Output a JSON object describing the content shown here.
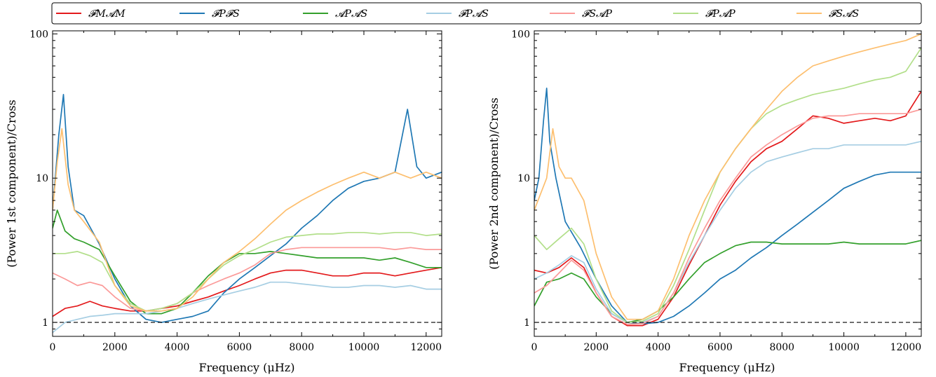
{
  "chart_data": [
    {
      "type": "line",
      "ylabel": "(Power 1st component)/Cross",
      "xlabel": "Frequency (μHz)",
      "xlim": [
        0,
        12500
      ],
      "ylim": [
        0.8,
        105
      ],
      "yscale": "log",
      "x_ticks": [
        0,
        2000,
        4000,
        6000,
        8000,
        10000,
        12000
      ],
      "x_tick_labels": [
        "0",
        "2000",
        "4000",
        "6000",
        "8000",
        "10000",
        "12000"
      ],
      "y_ticks": [
        1,
        10,
        100
      ],
      "y_tick_labels": [
        "1",
        "10",
        "100"
      ],
      "reference_line": 1,
      "series": [
        {
          "name": "𝓕M𝓐M",
          "color": "#e31a1c",
          "x": [
            0,
            400,
            800,
            1200,
            1600,
            2000,
            2500,
            3000,
            3500,
            4000,
            4500,
            5000,
            5500,
            6000,
            6500,
            7000,
            7500,
            8000,
            8500,
            9000,
            9500,
            10000,
            10500,
            11000,
            11500,
            12000,
            12500
          ],
          "y": [
            1.1,
            1.25,
            1.3,
            1.4,
            1.3,
            1.25,
            1.2,
            1.2,
            1.25,
            1.3,
            1.4,
            1.5,
            1.65,
            1.8,
            2.0,
            2.2,
            2.3,
            2.3,
            2.2,
            2.1,
            2.1,
            2.2,
            2.2,
            2.1,
            2.2,
            2.3,
            2.4
          ]
        },
        {
          "name": "𝓕P𝓕S",
          "color": "#1f78b4",
          "x": [
            0,
            200,
            350,
            500,
            700,
            1000,
            1500,
            2000,
            2500,
            3000,
            3500,
            4000,
            4500,
            5000,
            5500,
            6000,
            6500,
            7000,
            7500,
            8000,
            8500,
            9000,
            9500,
            10000,
            10500,
            11000,
            11400,
            11700,
            12000,
            12500
          ],
          "y": [
            6.0,
            20,
            38,
            12,
            6.0,
            5.5,
            3.5,
            2.0,
            1.3,
            1.05,
            1.0,
            1.05,
            1.1,
            1.2,
            1.6,
            2.0,
            2.4,
            2.9,
            3.5,
            4.5,
            5.5,
            7.0,
            8.5,
            9.5,
            10,
            11,
            30,
            12,
            10,
            11
          ]
        },
        {
          "name": "𝓐P𝓐S",
          "color": "#33a02c",
          "x": [
            0,
            150,
            400,
            700,
            1000,
            1500,
            2000,
            2500,
            3000,
            3500,
            4000,
            4500,
            5000,
            5500,
            6000,
            6500,
            7000,
            7500,
            8000,
            8500,
            9000,
            9500,
            10000,
            10500,
            11000,
            11500,
            12000,
            12500
          ],
          "y": [
            4.5,
            6.0,
            4.3,
            3.8,
            3.6,
            3.2,
            2.1,
            1.4,
            1.15,
            1.15,
            1.25,
            1.6,
            2.1,
            2.6,
            3.0,
            3.0,
            3.1,
            3.0,
            2.9,
            2.8,
            2.8,
            2.8,
            2.8,
            2.7,
            2.8,
            2.6,
            2.4,
            2.4
          ]
        },
        {
          "name": "𝓕P𝓐S",
          "color": "#a6cee3",
          "x": [
            0,
            400,
            800,
            1200,
            1600,
            2000,
            2500,
            3000,
            3500,
            4000,
            4500,
            5000,
            5500,
            6000,
            6500,
            7000,
            7500,
            8000,
            8500,
            9000,
            9500,
            10000,
            10500,
            11000,
            11500,
            12000,
            12500
          ],
          "y": [
            0.85,
            1.0,
            1.05,
            1.1,
            1.12,
            1.15,
            1.15,
            1.15,
            1.2,
            1.25,
            1.35,
            1.45,
            1.55,
            1.65,
            1.75,
            1.9,
            1.9,
            1.85,
            1.8,
            1.75,
            1.75,
            1.8,
            1.8,
            1.75,
            1.8,
            1.7,
            1.7
          ]
        },
        {
          "name": "𝓕S𝓐P",
          "color": "#fb9a99",
          "x": [
            0,
            400,
            800,
            1200,
            1600,
            2000,
            2500,
            3000,
            3500,
            4000,
            4500,
            5000,
            5500,
            6000,
            6500,
            7000,
            7500,
            8000,
            8500,
            9000,
            9500,
            10000,
            10500,
            11000,
            11500,
            12000,
            12500
          ],
          "y": [
            2.2,
            2.0,
            1.8,
            1.9,
            1.8,
            1.5,
            1.25,
            1.2,
            1.25,
            1.35,
            1.6,
            1.8,
            2.0,
            2.2,
            2.5,
            3.0,
            3.2,
            3.3,
            3.3,
            3.3,
            3.3,
            3.3,
            3.3,
            3.2,
            3.3,
            3.2,
            3.2
          ]
        },
        {
          "name": "𝓕P𝓐P",
          "color": "#b2df8a",
          "x": [
            0,
            400,
            800,
            1200,
            1600,
            2000,
            2500,
            3000,
            3500,
            4000,
            4500,
            5000,
            5500,
            6000,
            6500,
            7000,
            7500,
            8000,
            8500,
            9000,
            9500,
            10000,
            10500,
            11000,
            11500,
            12000,
            12500
          ],
          "y": [
            3.0,
            3.0,
            3.1,
            2.9,
            2.6,
            1.8,
            1.35,
            1.2,
            1.25,
            1.35,
            1.6,
            2.0,
            2.5,
            2.9,
            3.2,
            3.6,
            3.9,
            4.0,
            4.1,
            4.1,
            4.2,
            4.2,
            4.1,
            4.2,
            4.2,
            4.0,
            4.1
          ]
        },
        {
          "name": "𝓕S𝓐S",
          "color": "#fdbf6f",
          "x": [
            0,
            150,
            300,
            500,
            700,
            1000,
            1500,
            2000,
            2500,
            3000,
            3500,
            4000,
            4500,
            5000,
            5500,
            6000,
            6500,
            7000,
            7500,
            8000,
            8500,
            9000,
            9500,
            10000,
            10500,
            11000,
            11500,
            12000,
            12500
          ],
          "y": [
            6.0,
            13,
            22,
            9,
            6.0,
            5.0,
            3.6,
            1.8,
            1.3,
            1.2,
            1.2,
            1.25,
            1.5,
            2.0,
            2.6,
            3.1,
            3.8,
            4.8,
            6.0,
            7.0,
            8.0,
            9.0,
            10,
            11,
            10,
            11,
            10,
            11,
            10
          ]
        }
      ]
    },
    {
      "type": "line",
      "ylabel": "(Power 2nd component)/Cross",
      "xlabel": "Frequency (μHz)",
      "xlim": [
        0,
        12500
      ],
      "ylim": [
        0.8,
        105
      ],
      "yscale": "log",
      "x_ticks": [
        0,
        2000,
        4000,
        6000,
        8000,
        10000,
        12000
      ],
      "x_tick_labels": [
        "0",
        "2000",
        "4000",
        "6000",
        "8000",
        "10000",
        "12000"
      ],
      "y_ticks": [
        1,
        10,
        100
      ],
      "y_tick_labels": [
        "1",
        "10",
        "100"
      ],
      "reference_line": 1,
      "series": [
        {
          "name": "𝓕M𝓐M",
          "color": "#e31a1c",
          "x": [
            0,
            400,
            800,
            1200,
            1600,
            2000,
            2500,
            3000,
            3500,
            4000,
            4500,
            5000,
            5500,
            6000,
            6500,
            7000,
            7500,
            8000,
            8500,
            9000,
            9500,
            10000,
            10500,
            11000,
            11500,
            12000,
            12500
          ],
          "y": [
            2.3,
            2.2,
            2.4,
            2.8,
            2.4,
            1.6,
            1.1,
            0.95,
            0.95,
            1.05,
            1.5,
            2.5,
            4.0,
            6.5,
            9.5,
            13,
            16,
            18,
            22,
            27,
            26,
            24,
            25,
            26,
            25,
            27,
            40
          ]
        },
        {
          "name": "𝓕P𝓕S",
          "color": "#1f78b4",
          "x": [
            0,
            150,
            300,
            400,
            500,
            700,
            1000,
            1500,
            2000,
            2500,
            3000,
            3500,
            4000,
            4500,
            5000,
            5500,
            6000,
            6500,
            7000,
            7500,
            8000,
            8500,
            9000,
            9500,
            10000,
            10500,
            11000,
            11500,
            12000,
            12500
          ],
          "y": [
            7.0,
            10,
            25,
            42,
            18,
            10,
            5.0,
            3.3,
            2.0,
            1.3,
            1.0,
            0.98,
            1.0,
            1.1,
            1.3,
            1.6,
            2.0,
            2.3,
            2.8,
            3.3,
            4.0,
            4.8,
            5.8,
            7.0,
            8.5,
            9.5,
            10.5,
            11,
            11,
            11
          ]
        },
        {
          "name": "𝓐P𝓐S",
          "color": "#33a02c",
          "x": [
            0,
            400,
            800,
            1200,
            1600,
            2000,
            2500,
            3000,
            3500,
            4000,
            4500,
            5000,
            5500,
            6000,
            6500,
            7000,
            7500,
            8000,
            8500,
            9000,
            9500,
            10000,
            10500,
            11000,
            11500,
            12000,
            12500
          ],
          "y": [
            1.3,
            1.9,
            2.0,
            2.2,
            2.0,
            1.5,
            1.15,
            1.0,
            1.05,
            1.2,
            1.5,
            2.0,
            2.6,
            3.0,
            3.4,
            3.6,
            3.6,
            3.5,
            3.5,
            3.5,
            3.5,
            3.6,
            3.5,
            3.5,
            3.5,
            3.5,
            3.7
          ]
        },
        {
          "name": "𝓕P𝓐S",
          "color": "#a6cee3",
          "x": [
            0,
            400,
            800,
            1200,
            1600,
            2000,
            2500,
            3000,
            3500,
            4000,
            4500,
            5000,
            5500,
            6000,
            6500,
            7000,
            7500,
            8000,
            8500,
            9000,
            9500,
            10000,
            10500,
            11000,
            11500,
            12000,
            12500
          ],
          "y": [
            2.0,
            2.2,
            2.5,
            2.9,
            2.6,
            1.7,
            1.15,
            1.0,
            1.0,
            1.1,
            1.6,
            2.6,
            4.0,
            6.0,
            8.5,
            11,
            13,
            14,
            15,
            16,
            16,
            17,
            17,
            17,
            17,
            17,
            18
          ]
        },
        {
          "name": "𝓕S𝓐P",
          "color": "#fb9a99",
          "x": [
            0,
            400,
            800,
            1200,
            1600,
            2000,
            2500,
            3000,
            3500,
            4000,
            4500,
            5000,
            5500,
            6000,
            6500,
            7000,
            7500,
            8000,
            8500,
            9000,
            9500,
            10000,
            10500,
            11000,
            11500,
            12000,
            12500
          ],
          "y": [
            1.6,
            1.8,
            2.2,
            2.7,
            2.3,
            1.6,
            1.1,
            0.97,
            0.98,
            1.1,
            1.6,
            2.8,
            4.5,
            7.0,
            10,
            14,
            17,
            20,
            23,
            26,
            27,
            27,
            28,
            28,
            28,
            28,
            30
          ]
        },
        {
          "name": "𝓕P𝓐P",
          "color": "#b2df8a",
          "x": [
            0,
            400,
            800,
            1200,
            1600,
            2000,
            2500,
            3000,
            3500,
            4000,
            4500,
            5000,
            5500,
            6000,
            6500,
            7000,
            7500,
            8000,
            8500,
            9000,
            9500,
            10000,
            10500,
            11000,
            11500,
            12000,
            12500
          ],
          "y": [
            4.0,
            3.2,
            3.8,
            4.5,
            3.5,
            2.0,
            1.2,
            1.0,
            1.02,
            1.15,
            1.8,
            3.2,
            6.0,
            11,
            16,
            22,
            28,
            32,
            35,
            38,
            40,
            42,
            45,
            48,
            50,
            55,
            80
          ]
        },
        {
          "name": "𝓕S𝓐S",
          "color": "#fdbf6f",
          "x": [
            0,
            400,
            600,
            800,
            1000,
            1200,
            1600,
            2000,
            2500,
            3000,
            3500,
            4000,
            4500,
            5000,
            5500,
            6000,
            6500,
            7000,
            7500,
            8000,
            8500,
            9000,
            9500,
            10000,
            10500,
            11000,
            11500,
            12000,
            12500
          ],
          "y": [
            6.0,
            10,
            22,
            12,
            10,
            10,
            7.0,
            3.0,
            1.5,
            1.05,
            1.05,
            1.2,
            2.0,
            4.0,
            7.0,
            11,
            16,
            22,
            30,
            40,
            50,
            60,
            65,
            70,
            75,
            80,
            85,
            90,
            100
          ]
        }
      ]
    }
  ]
}
